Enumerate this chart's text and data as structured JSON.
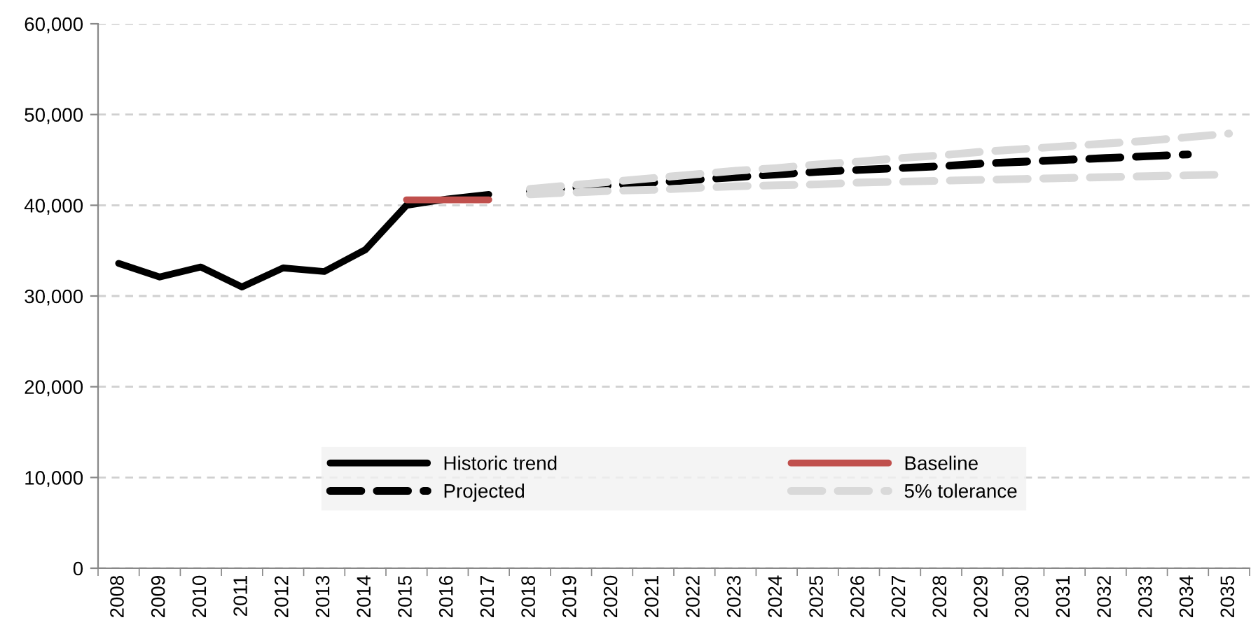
{
  "chart_data": {
    "type": "line",
    "categories": [
      "2008",
      "2009",
      "2010",
      "2011",
      "2012",
      "2013",
      "2014",
      "2015",
      "2016",
      "2017",
      "2018",
      "2019",
      "2020",
      "2021",
      "2022",
      "2023",
      "2024",
      "2025",
      "2026",
      "2027",
      "2028",
      "2029",
      "2030",
      "2031",
      "2032",
      "2033",
      "2034",
      "2035"
    ],
    "series": [
      {
        "name": "Historic trend",
        "color": "#000000",
        "line_style": "solid",
        "values": [
          33600,
          32100,
          33200,
          31000,
          33100,
          32700,
          35100,
          40000,
          40700,
          41200,
          null,
          null,
          null,
          null,
          null,
          null,
          null,
          null,
          null,
          null,
          null,
          null,
          null,
          null,
          null,
          null,
          null,
          null
        ]
      },
      {
        "name": "Baseline",
        "color": "#c0504d",
        "line_style": "solid",
        "values": [
          null,
          null,
          null,
          null,
          null,
          null,
          null,
          40600,
          40600,
          40600,
          null,
          null,
          null,
          null,
          null,
          null,
          null,
          null,
          null,
          null,
          null,
          null,
          null,
          null,
          null,
          null,
          null,
          null
        ]
      },
      {
        "name": "Projected",
        "color": "#000000",
        "line_style": "dashed",
        "values": [
          null,
          null,
          null,
          null,
          null,
          null,
          null,
          null,
          null,
          null,
          41600,
          41900,
          42200,
          42500,
          42800,
          43100,
          43400,
          43700,
          43900,
          44100,
          44300,
          44600,
          44800,
          45000,
          45200,
          45400,
          45600,
          null
        ]
      },
      {
        "name": "5% tolerance",
        "color": "#d9d9d9",
        "line_style": "dashed",
        "values": [
          null,
          null,
          null,
          null,
          null,
          null,
          null,
          null,
          null,
          null,
          41800,
          42200,
          42600,
          43000,
          43400,
          43800,
          44100,
          44500,
          44800,
          45200,
          45500,
          45900,
          46200,
          46500,
          46800,
          47100,
          47500,
          47900
        ]
      },
      {
        "color": "#d9d9d9",
        "line_style": "dashed",
        "values": [
          null,
          null,
          null,
          null,
          null,
          null,
          null,
          null,
          null,
          null,
          41200,
          41400,
          41600,
          41700,
          41900,
          42100,
          42200,
          42300,
          42500,
          42600,
          42700,
          42800,
          42900,
          43000,
          43100,
          43200,
          43300,
          43400
        ]
      }
    ],
    "ylim": [
      0,
      60000
    ],
    "yticks": [
      {
        "value": 0,
        "label": "0"
      },
      {
        "value": 10000,
        "label": "10,000"
      },
      {
        "value": 20000,
        "label": "20,000"
      },
      {
        "value": 30000,
        "label": "30,000"
      },
      {
        "value": 40000,
        "label": "40,000"
      },
      {
        "value": 50000,
        "label": "50,000"
      },
      {
        "value": 60000,
        "label": "60,000"
      }
    ],
    "grid": "y",
    "legend": "bottom"
  }
}
